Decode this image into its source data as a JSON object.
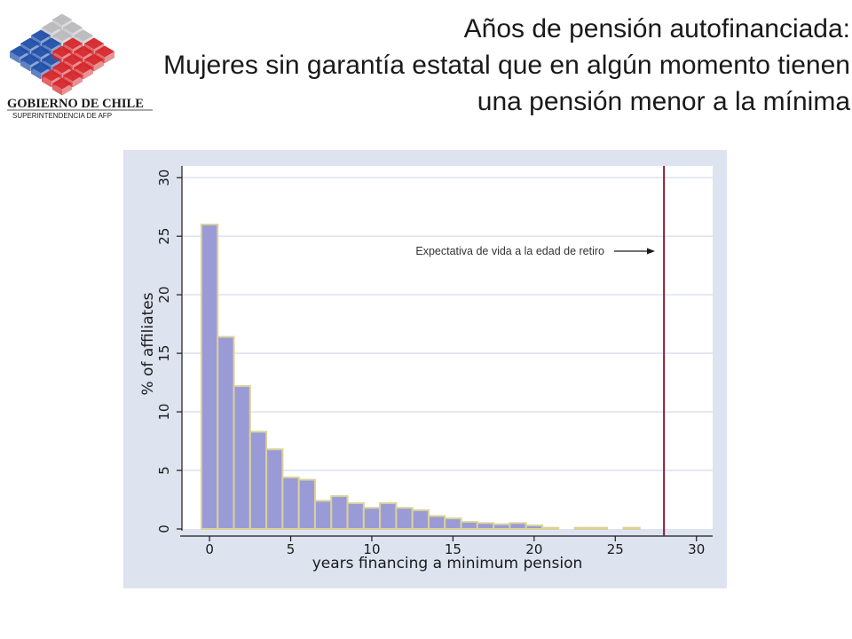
{
  "header": {
    "title_lines": [
      "Años de pensión autofinanciada:",
      "Mujeres sin garantía estatal que en algún momento tienen",
      "una pensión menor a la mínima"
    ],
    "logo": {
      "name": "GOBIERNO DE CHILE",
      "subtitle": "SUPERINTENDENCIA DE AFP"
    }
  },
  "colors": {
    "bar_fill": "#9a9ad6",
    "bar_stroke": "#d8d29a",
    "plot_bg": "#dde3ef",
    "line": "#8b1a3a",
    "logo_red": "#d4262a",
    "logo_blue": "#1f4fa8",
    "logo_grey": "#b9b9bd"
  },
  "chart_data": {
    "type": "bar",
    "xlabel": "years financing a minimum pension",
    "ylabel": "% of affiliates",
    "xlim": [
      -1.7,
      31
    ],
    "ylim": [
      0,
      31
    ],
    "xticks": [
      0,
      5,
      10,
      15,
      20,
      25,
      30
    ],
    "yticks": [
      0,
      5,
      10,
      15,
      20,
      25,
      30
    ],
    "bin_width": 1,
    "x": [
      0,
      1,
      2,
      3,
      4,
      5,
      6,
      7,
      8,
      9,
      10,
      11,
      12,
      13,
      14,
      15,
      16,
      17,
      18,
      19,
      20,
      21,
      22,
      23,
      24,
      25,
      26
    ],
    "values": [
      26.0,
      16.4,
      12.2,
      8.3,
      6.8,
      4.4,
      4.2,
      2.4,
      2.8,
      2.2,
      1.8,
      2.2,
      1.8,
      1.6,
      1.1,
      0.9,
      0.6,
      0.5,
      0.4,
      0.5,
      0.3,
      0.1,
      0.0,
      0.1,
      0.1,
      0.0,
      0.1
    ],
    "reference_line": {
      "x": 28,
      "label": "Expectativa de vida a la edad de retiro"
    },
    "grid": true
  }
}
